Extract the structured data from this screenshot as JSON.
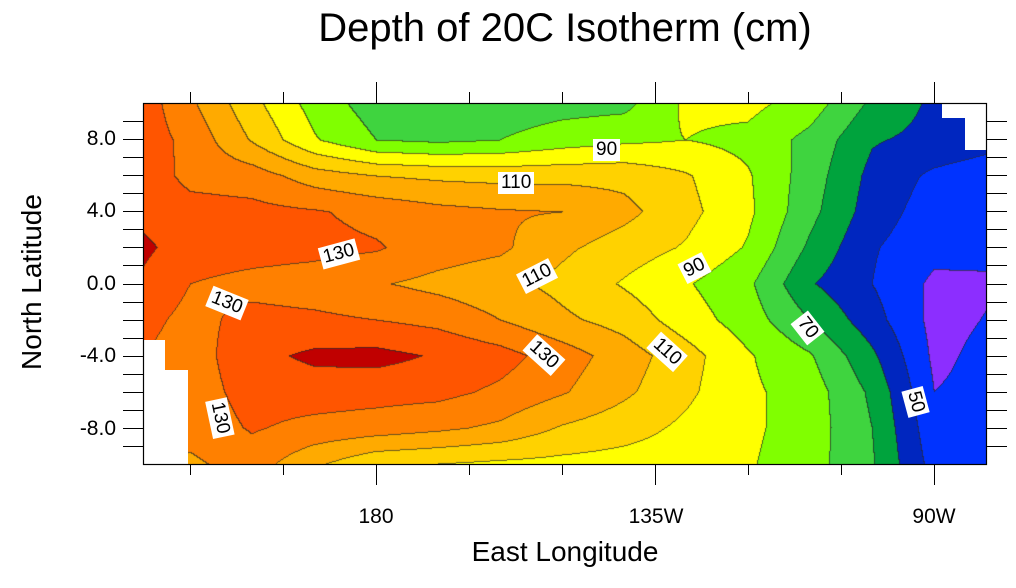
{
  "chart_data": {
    "type": "heatmap",
    "subtype": "filled-contour",
    "title": "Depth of 20C Isotherm (cm)",
    "xlabel": "East Longitude",
    "ylabel": "North Latitude",
    "xlim": [
      142.5,
      278.5
    ],
    "ylim": [
      -10,
      10
    ],
    "x_ticks": [
      {
        "value": 180,
        "label": "180"
      },
      {
        "value": 225,
        "label": "135W"
      },
      {
        "value": 270,
        "label": "90W"
      }
    ],
    "x_minor_ticks": [
      150,
      165,
      195,
      210,
      240,
      255
    ],
    "y_ticks": [
      {
        "value": 8,
        "label": "8.0"
      },
      {
        "value": 4,
        "label": "4.0"
      },
      {
        "value": 0,
        "label": "0.0"
      },
      {
        "value": -4,
        "label": "-4.0"
      },
      {
        "value": -8,
        "label": "-8.0"
      }
    ],
    "contour_interval": 10,
    "levels": [
      40,
      50,
      60,
      70,
      80,
      90,
      100,
      110,
      120,
      130,
      140
    ],
    "colors": [
      "#8C2EFF",
      "#0033FF",
      "#0026BF",
      "#00A33D",
      "#3FD43F",
      "#80FF00",
      "#FFFF00",
      "#FFD200",
      "#FFAA00",
      "#FF8000",
      "#FF5500",
      "#C00000"
    ],
    "grid_lon": [
      142.5,
      150,
      160,
      170,
      180,
      190,
      200,
      210,
      220,
      230,
      240,
      250,
      260,
      270,
      280
    ],
    "grid_lat": [
      10,
      8,
      6,
      4,
      2,
      0,
      -2,
      -4,
      -6,
      -8,
      -10
    ],
    "values": [
      [
        135,
        122,
        103,
        86,
        75,
        74,
        74,
        76,
        77,
        92,
        93,
        85,
        68,
        58,
        55
      ],
      [
        135,
        127,
        109,
        91,
        80,
        78,
        80,
        85,
        88,
        90,
        87,
        77,
        61,
        57,
        53
      ],
      [
        136,
        127,
        125,
        115,
        110,
        108,
        107,
        107,
        107,
        101,
        91,
        75,
        57,
        48,
        44
      ],
      [
        137,
        134,
        133,
        131,
        127,
        123,
        121,
        120,
        113,
        103,
        92,
        73,
        55,
        45,
        42
      ],
      [
        142,
        135,
        134,
        133,
        131,
        125,
        122,
        112,
        105,
        99,
        89,
        68,
        51,
        43,
        42
      ],
      [
        138,
        130,
        127,
        125,
        121,
        117,
        113,
        107,
        99,
        91,
        82,
        61,
        50,
        38,
        39
      ],
      [
        133,
        127,
        133,
        132,
        130,
        127,
        120,
        112,
        106,
        95,
        85,
        70,
        54,
        37,
        41
      ],
      [
        130,
        125,
        137,
        142,
        143,
        139,
        134,
        125,
        115,
        104,
        91,
        81,
        62,
        38,
        43
      ],
      [
        128,
        125,
        134,
        135,
        134,
        133,
        128,
        121,
        112,
        102,
        92,
        85,
        68,
        40,
        43
      ],
      [
        126,
        124,
        131,
        127,
        125,
        122,
        118,
        109,
        104,
        98,
        92,
        85,
        70,
        43,
        44
      ],
      [
        124,
        118,
        125,
        112,
        102,
        100,
        98,
        97,
        96,
        95,
        91,
        84,
        71,
        46,
        44
      ]
    ],
    "contour_labels": [
      "90",
      "110",
      "130",
      "110",
      "90",
      "130",
      "130",
      "110",
      "70",
      "130",
      "50"
    ]
  }
}
